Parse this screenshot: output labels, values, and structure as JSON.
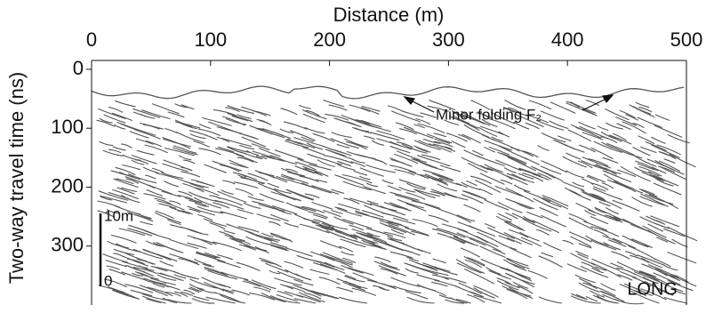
{
  "chart_data": {
    "type": "radargram",
    "x_label": "Distance (m)",
    "y_label": "Two-way travel time (ns)",
    "xlim": [
      0,
      500
    ],
    "xticks": [
      0,
      100,
      200,
      300,
      400,
      500
    ],
    "ylim": [
      -15,
      400
    ],
    "yticks": [
      0,
      100,
      200,
      300
    ],
    "x_axis_position": "top",
    "annotations": {
      "folding": "Minor folding F₂",
      "scale_top": "10m",
      "scale_bottom": "0",
      "profile": "LONG"
    },
    "line_color": "#555555"
  }
}
